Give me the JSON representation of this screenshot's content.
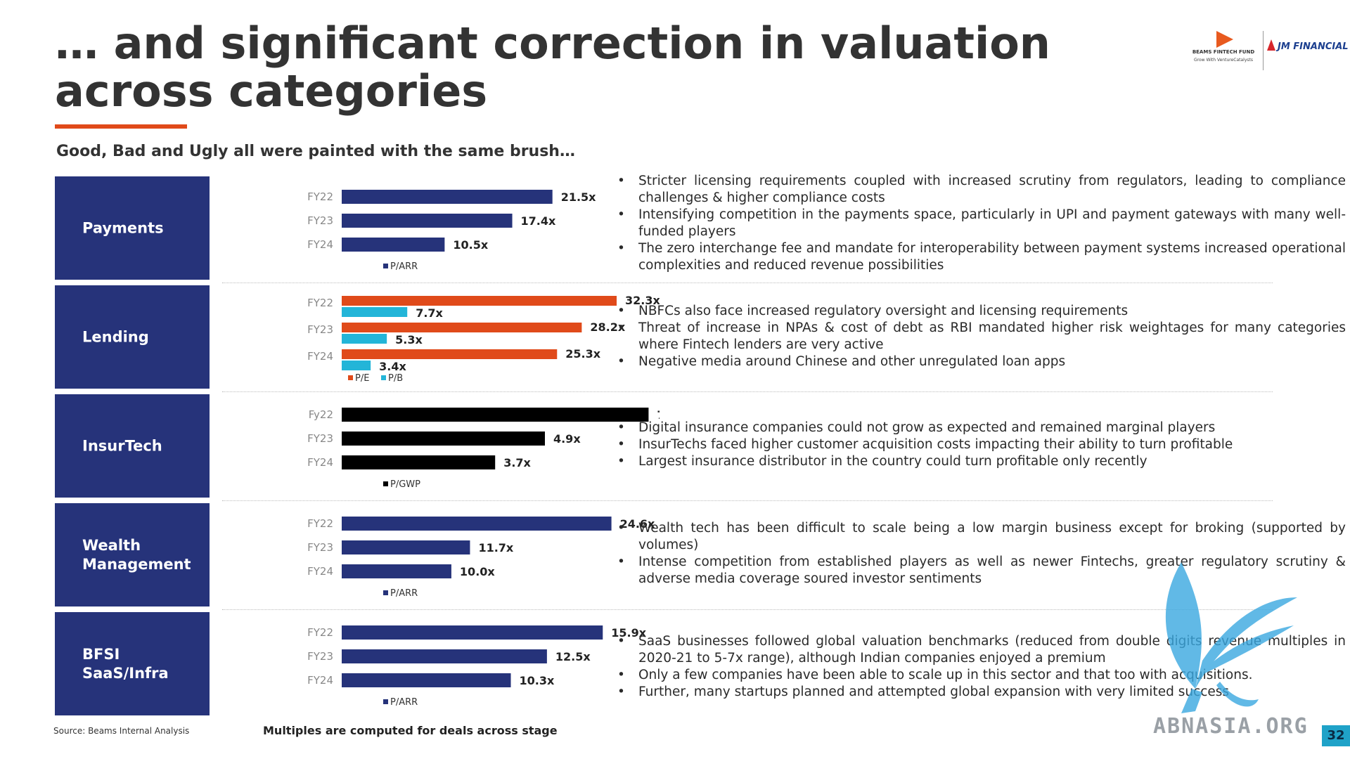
{
  "title": "… and significant correction in valuation across categories",
  "subtitle": "Good, Bad and Ugly all were painted with the same brush…",
  "logos": {
    "beams_name": "BEAMS FINTECH FUND",
    "beams_tag": "Grow With VentureCatalysts",
    "jm": "JM FINANCIAL"
  },
  "colors": {
    "navy": "#26337a",
    "orange": "#e04a1a",
    "cyan": "#23b5d8",
    "black": "#000000"
  },
  "chart_data": [
    {
      "type": "bar",
      "orientation": "horizontal",
      "category": "Payments",
      "categories": [
        "FY22",
        "FY23",
        "FY24"
      ],
      "series": [
        {
          "name": "P/ARR",
          "values": [
            21.5,
            17.4,
            10.5
          ],
          "labels": [
            "21.5x",
            "17.4x",
            "10.5x"
          ],
          "color": "#26337a"
        }
      ],
      "xlim": [
        0,
        33
      ]
    },
    {
      "type": "bar",
      "orientation": "horizontal",
      "category": "Lending",
      "categories": [
        "FY22",
        "FY23",
        "FY24"
      ],
      "series": [
        {
          "name": "P/E",
          "values": [
            32.3,
            28.2,
            25.3
          ],
          "labels": [
            "32.3x",
            "28.2x",
            "25.3x"
          ],
          "color": "#e04a1a"
        },
        {
          "name": "P/B",
          "values": [
            7.7,
            5.3,
            3.4
          ],
          "labels": [
            "7.7x",
            "5.3x",
            "3.4x"
          ],
          "color": "#23b5d8"
        }
      ],
      "xlim": [
        0,
        38
      ]
    },
    {
      "type": "bar",
      "orientation": "horizontal",
      "category": "InsurTech",
      "categories": [
        "Fy22",
        "FY23",
        "FY24"
      ],
      "series": [
        {
          "name": "P/GWP",
          "values": [
            7.4,
            4.9,
            3.7
          ],
          "labels": [
            "7.4x",
            "4.9x",
            "3.7x"
          ],
          "color": "#000000"
        }
      ],
      "xlim": [
        0,
        7.8
      ]
    },
    {
      "type": "bar",
      "orientation": "horizontal",
      "category": "Wealth Management",
      "categories": [
        "FY22",
        "FY23",
        "FY24"
      ],
      "series": [
        {
          "name": "P/ARR",
          "values": [
            24.6,
            11.7,
            10.0
          ],
          "labels": [
            "24.6x",
            "11.7x",
            "10.0x"
          ],
          "color": "#26337a"
        }
      ],
      "xlim": [
        0,
        29.5
      ]
    },
    {
      "type": "bar",
      "orientation": "horizontal",
      "category": "BFSI SaaS/Infra",
      "categories": [
        "FY22",
        "FY23",
        "FY24"
      ],
      "series": [
        {
          "name": "P/ARR",
          "values": [
            15.9,
            12.5,
            10.3
          ],
          "labels": [
            "15.9x",
            "12.5x",
            "10.3x"
          ],
          "color": "#26337a"
        }
      ],
      "xlim": [
        0,
        19.7
      ]
    }
  ],
  "rows": [
    {
      "label": "Payments",
      "bullets": [
        "Stricter licensing requirements coupled with increased scrutiny from regulators, leading to compliance challenges & higher compliance costs",
        "Intensifying competition in the payments space, particularly in UPI and payment gateways with many well-funded players",
        "The zero interchange fee and mandate for interoperability between payment systems increased operational complexities and reduced revenue possibilities"
      ]
    },
    {
      "label": "Lending",
      "bullets": [
        "NBFCs also face increased regulatory oversight and licensing requirements",
        "Threat of increase in NPAs & cost of debt as RBI mandated higher risk weightages for many categories where Fintech lenders are very active",
        "Negative media around Chinese and other unregulated loan apps"
      ]
    },
    {
      "label": "InsurTech",
      "bullets": [
        "Digital insurance companies could not grow as expected and remained marginal players",
        "InsurTechs faced higher customer acquisition costs impacting their ability to turn profitable",
        "Largest insurance distributor in the country could turn profitable only recently"
      ]
    },
    {
      "label": "Wealth\nManagement",
      "bullets": [
        "Wealth tech has been difficult to scale being a low margin business except for broking (supported by volumes)",
        "Intense competition from established players as well as newer Fintechs, greater regulatory scrutiny & adverse media coverage soured investor sentiments"
      ]
    },
    {
      "label": "BFSI\nSaaS/Infra",
      "bullets": [
        "SaaS businesses followed global valuation benchmarks (reduced from double digits revenue multiples in 2020-21 to 5-7x range), although Indian companies enjoyed a premium",
        "Only a few companies have been able to scale up in this sector and that too with acquisitions.",
        "Further, many startups planned and attempted global expansion with very limited success"
      ]
    }
  ],
  "footer": {
    "source": "Source: Beams Internal Analysis",
    "note": "Multiples are computed for deals across stage",
    "watermark": "ABNASIA.ORG",
    "page": "32"
  }
}
